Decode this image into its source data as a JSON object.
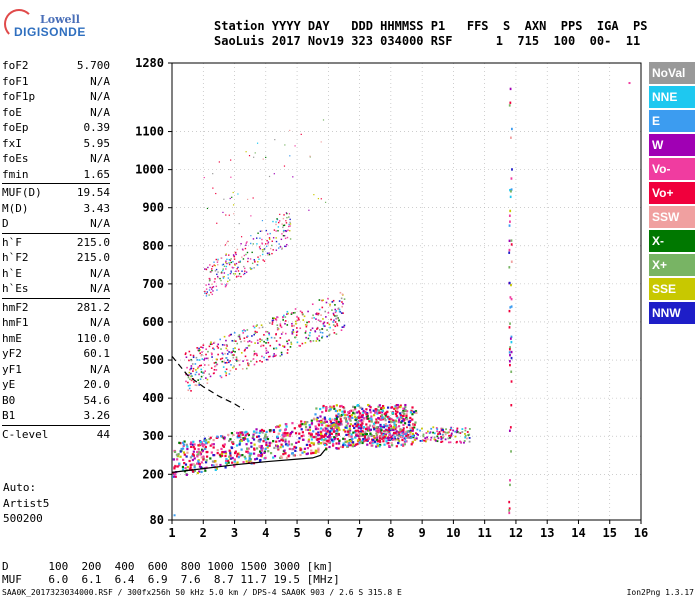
{
  "logo": {
    "brand": "Lowell",
    "product": "DIGISONDE"
  },
  "header": {
    "line1": "Station YYYY DAY   DDD HHMMSS P1   FFS  S  AXN  PPS  IGA  PS",
    "line2": "SaoLuis 2017 Nov19 323 034000 RSF      1  715  100  00-  11"
  },
  "params": [
    [
      {
        "name": "foF2",
        "value": "5.700"
      },
      {
        "name": "foF1",
        "value": "N/A"
      },
      {
        "name": "foF1p",
        "value": "N/A"
      },
      {
        "name": "foE",
        "value": "N/A"
      },
      {
        "name": "foEp",
        "value": "0.39"
      },
      {
        "name": "fxI",
        "value": "5.95"
      },
      {
        "name": "foEs",
        "value": "N/A"
      },
      {
        "name": "fmin",
        "value": "1.65"
      }
    ],
    [
      {
        "name": "MUF(D)",
        "value": "19.54"
      },
      {
        "name": "M(D)",
        "value": "3.43"
      },
      {
        "name": "D",
        "value": "N/A"
      }
    ],
    [
      {
        "name": "h`F",
        "value": "215.0"
      },
      {
        "name": "h`F2",
        "value": "215.0"
      },
      {
        "name": "h`E",
        "value": "N/A"
      },
      {
        "name": "h`Es",
        "value": "N/A"
      }
    ],
    [
      {
        "name": "hmF2",
        "value": "281.2"
      },
      {
        "name": "hmF1",
        "value": "N/A"
      },
      {
        "name": "hmE",
        "value": "110.0"
      },
      {
        "name": "yF2",
        "value": "60.1"
      },
      {
        "name": "yF1",
        "value": "N/A"
      },
      {
        "name": "yE",
        "value": "20.0"
      },
      {
        "name": "B0",
        "value": "54.6"
      },
      {
        "name": "B1",
        "value": "3.26"
      }
    ],
    [
      {
        "name": "C-level",
        "value": "44"
      }
    ]
  ],
  "auto": {
    "line1": "Auto:",
    "line2": "Artist5",
    "line3": "500200"
  },
  "footer": {
    "d_row": "D      100  200  400  600  800 1000 1500 3000 [km]",
    "muf_row": "MUF    6.0  6.1  6.4  6.9  7.6  8.7 11.7 19.5 [MHz]",
    "info": "SAA0K_2017323034000.RSF / 300fx256h 50 kHz 5.0 km / DPS-4 SAA0K 903 / 2.6 S 315.8 E",
    "version": "Ion2Png 1.3.17"
  },
  "legend": [
    {
      "label": "NoVal",
      "color": "#999999"
    },
    {
      "label": "NNE",
      "color": "#1ec8f0"
    },
    {
      "label": "E",
      "color": "#3c9cf0"
    },
    {
      "label": "W",
      "color": "#a000b4"
    },
    {
      "label": "Vo-",
      "color": "#f03ca0"
    },
    {
      "label": "Vo+",
      "color": "#f0003c"
    },
    {
      "label": "SSW",
      "color": "#f0a0a0"
    },
    {
      "label": "X-",
      "color": "#007800"
    },
    {
      "label": "X+",
      "color": "#78b464"
    },
    {
      "label": "SSE",
      "color": "#c8c800"
    },
    {
      "label": "NNW",
      "color": "#1e1ec8"
    }
  ],
  "chart_data": {
    "type": "scatter",
    "title": "",
    "xlabel": "",
    "ylabel": "",
    "x_range": [
      1,
      16
    ],
    "y_range": [
      80,
      1280
    ],
    "x_ticks": [
      1,
      2,
      3,
      4,
      5,
      6,
      7,
      8,
      9,
      10,
      11,
      12,
      13,
      14,
      15,
      16
    ],
    "y_ticks": [
      80,
      200,
      300,
      400,
      500,
      600,
      700,
      800,
      900,
      1000,
      1100,
      1280
    ],
    "grid": "dotted",
    "echo_clusters": [
      {
        "name": "F-layer trace",
        "freq_range": [
          1.0,
          10.5
        ],
        "height_range": [
          200,
          470
        ]
      },
      {
        "name": "2nd hop",
        "freq_range": [
          1.4,
          6.5
        ],
        "height_range": [
          420,
          700
        ]
      },
      {
        "name": "3rd hop",
        "freq_range": [
          2.0,
          4.8
        ],
        "height_range": [
          650,
          920
        ]
      },
      {
        "name": "interference line",
        "freq_range": [
          11.7,
          11.9
        ],
        "height_range": [
          80,
          1220
        ]
      }
    ],
    "trace_curve": [
      [
        1.0,
        205
      ],
      [
        2.0,
        215
      ],
      [
        3.0,
        225
      ],
      [
        4.0,
        233
      ],
      [
        5.0,
        240
      ],
      [
        5.5,
        243
      ],
      [
        5.75,
        250
      ],
      [
        5.9,
        265
      ]
    ],
    "dashed_curve": [
      [
        1.0,
        510
      ],
      [
        1.5,
        460
      ],
      [
        2.0,
        430
      ],
      [
        2.5,
        405
      ],
      [
        3.0,
        385
      ],
      [
        3.3,
        370
      ]
    ]
  }
}
